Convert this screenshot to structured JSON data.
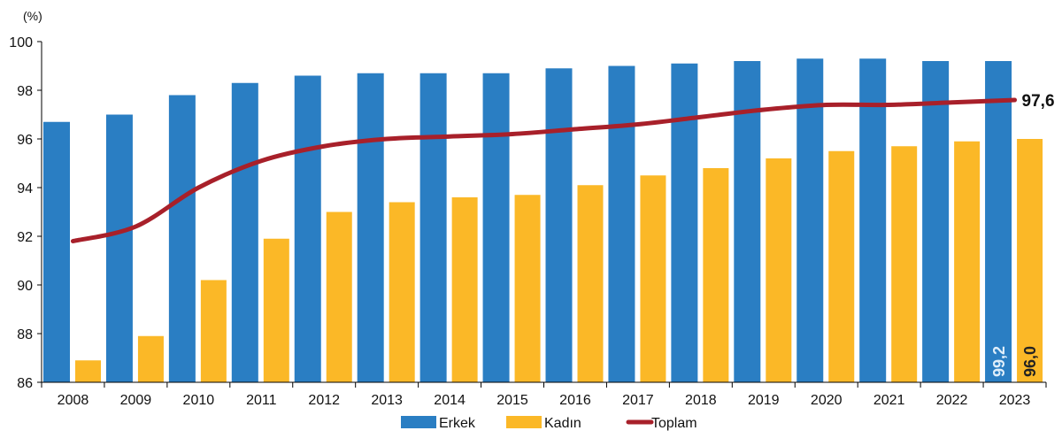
{
  "chart_data": {
    "type": "bar",
    "unit_label": "(%)",
    "categories": [
      "2008",
      "2009",
      "2010",
      "2011",
      "2012",
      "2013",
      "2014",
      "2015",
      "2016",
      "2017",
      "2018",
      "2019",
      "2020",
      "2021",
      "2022",
      "2023"
    ],
    "series": [
      {
        "name": "Erkek",
        "type": "bar",
        "color": "#2a7ec3",
        "values": [
          96.7,
          97.0,
          97.8,
          98.3,
          98.6,
          98.7,
          98.7,
          98.7,
          98.9,
          99.0,
          99.1,
          99.2,
          99.3,
          99.3,
          99.2,
          99.2
        ]
      },
      {
        "name": "Kadın",
        "type": "bar",
        "color": "#fbb827",
        "values": [
          86.9,
          87.9,
          90.2,
          91.9,
          93.0,
          93.4,
          93.6,
          93.7,
          94.1,
          94.5,
          94.8,
          95.2,
          95.5,
          95.7,
          95.9,
          96.0
        ]
      },
      {
        "name": "Toplam",
        "type": "line",
        "color": "#a8202a",
        "values": [
          91.8,
          92.4,
          94.0,
          95.1,
          95.7,
          96.0,
          96.1,
          96.2,
          96.4,
          96.6,
          96.9,
          97.2,
          97.4,
          97.4,
          97.5,
          97.6
        ]
      }
    ],
    "data_labels": {
      "erkek_last": "99,2",
      "kadin_last": "96,0",
      "toplam_last": "97,6"
    },
    "ylim": [
      86,
      100
    ],
    "yticks": [
      86,
      88,
      90,
      92,
      94,
      96,
      98,
      100
    ],
    "grid": false,
    "legend": "bottom"
  }
}
